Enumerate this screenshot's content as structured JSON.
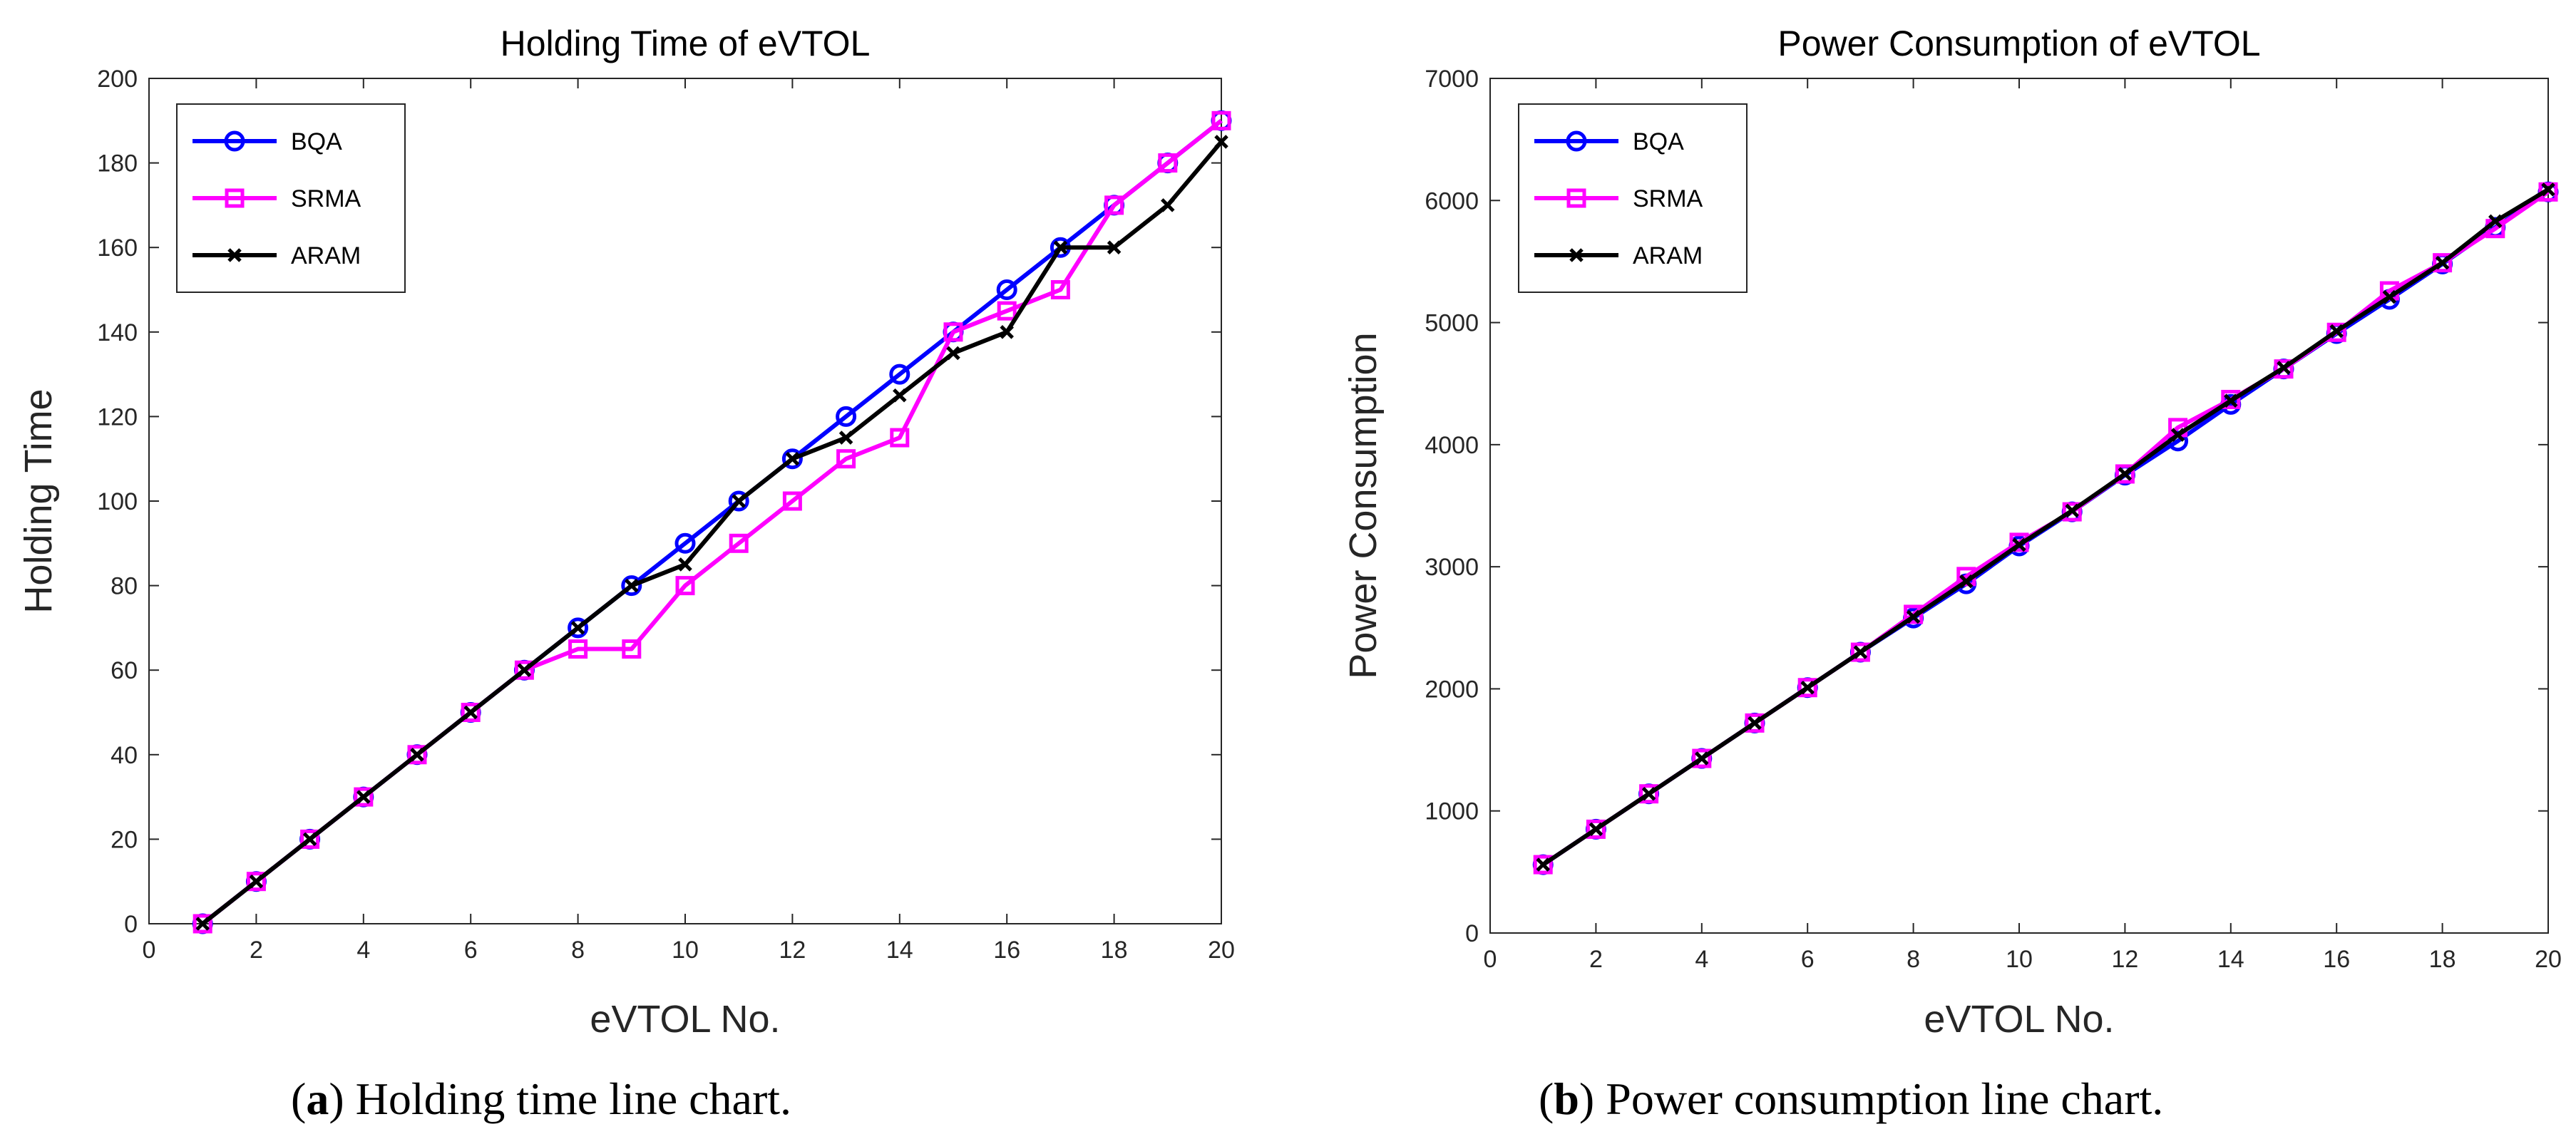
{
  "chart_data": [
    {
      "type": "line",
      "title": "Holding Time of eVTOL",
      "xlabel": "eVTOL No.",
      "ylabel": "Holding Time",
      "xlim": [
        0,
        20
      ],
      "ylim": [
        0,
        200
      ],
      "xticks": [
        0,
        2,
        4,
        6,
        8,
        10,
        12,
        14,
        16,
        18,
        20
      ],
      "yticks": [
        0,
        20,
        40,
        60,
        80,
        100,
        120,
        140,
        160,
        180,
        200
      ],
      "grid": false,
      "legend_position": "top-left",
      "x": [
        1,
        2,
        3,
        4,
        5,
        6,
        7,
        8,
        9,
        10,
        11,
        12,
        13,
        14,
        15,
        16,
        17,
        18,
        19,
        20
      ],
      "series": [
        {
          "name": "BQA",
          "color": "#0000ff",
          "marker": "circle",
          "values": [
            0,
            10,
            20,
            30,
            40,
            50,
            60,
            70,
            80,
            90,
            100,
            110,
            120,
            130,
            140,
            150,
            160,
            170,
            180,
            190
          ]
        },
        {
          "name": "SRMA",
          "color": "#ff00ff",
          "marker": "square",
          "values": [
            0,
            10,
            20,
            30,
            40,
            50,
            60,
            65,
            65,
            80,
            90,
            100,
            110,
            115,
            140,
            145,
            150,
            170,
            180,
            190
          ]
        },
        {
          "name": "ARAM",
          "color": "#000000",
          "marker": "x",
          "values": [
            0,
            10,
            20,
            30,
            40,
            50,
            60,
            70,
            80,
            85,
            100,
            110,
            115,
            125,
            135,
            140,
            160,
            160,
            170,
            185
          ]
        }
      ]
    },
    {
      "type": "line",
      "title": "Power Consumption of eVTOL",
      "xlabel": "eVTOL No.",
      "ylabel": "Power Consumption",
      "xlim": [
        0,
        20
      ],
      "ylim": [
        0,
        7000
      ],
      "xticks": [
        0,
        2,
        4,
        6,
        8,
        10,
        12,
        14,
        16,
        18,
        20
      ],
      "yticks": [
        0,
        1000,
        2000,
        3000,
        4000,
        5000,
        6000,
        7000
      ],
      "grid": false,
      "legend_position": "top-left",
      "x": [
        1,
        2,
        3,
        4,
        5,
        6,
        7,
        8,
        9,
        10,
        11,
        12,
        13,
        14,
        15,
        16,
        17,
        18,
        19,
        20
      ],
      "series": [
        {
          "name": "BQA",
          "color": "#0000ff",
          "marker": "circle",
          "values": [
            560,
            850,
            1140,
            1430,
            1720,
            2010,
            2300,
            2580,
            2860,
            3170,
            3450,
            3750,
            4030,
            4330,
            4620,
            4910,
            5190,
            5480,
            5780,
            6070
          ]
        },
        {
          "name": "SRMA",
          "color": "#ff00ff",
          "marker": "square",
          "values": [
            560,
            850,
            1140,
            1430,
            1720,
            2010,
            2300,
            2610,
            2920,
            3200,
            3450,
            3760,
            4140,
            4370,
            4620,
            4920,
            5260,
            5490,
            5770,
            6070
          ]
        },
        {
          "name": "ARAM",
          "color": "#000000",
          "marker": "x",
          "values": [
            560,
            850,
            1140,
            1430,
            1720,
            2010,
            2300,
            2590,
            2880,
            3180,
            3460,
            3760,
            4080,
            4360,
            4630,
            4930,
            5210,
            5490,
            5830,
            6090
          ]
        }
      ]
    }
  ],
  "captions": [
    {
      "letter": "a",
      "text": "Holding time line chart."
    },
    {
      "letter": "b",
      "text": "Power consumption line chart."
    }
  ]
}
